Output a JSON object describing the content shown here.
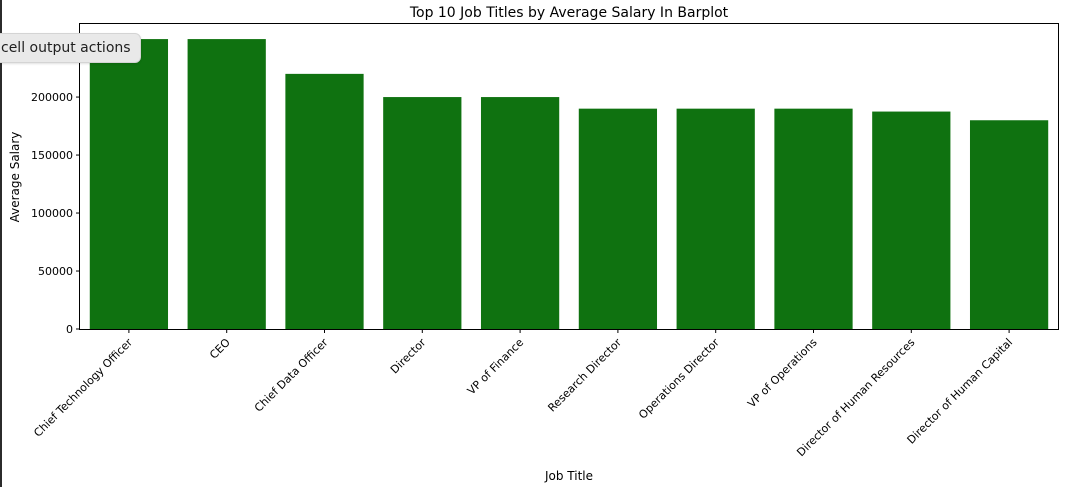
{
  "output_actions": {
    "label": "cell output actions"
  },
  "colors": {
    "bar": "#0f7210",
    "axis": "#000000",
    "text": "#000000"
  },
  "chart_data": {
    "type": "bar",
    "title": "Top 10 Job Titles by Average Salary In Barplot",
    "xlabel": "Job Title",
    "ylabel": "Average Salary",
    "categories": [
      "Chief Technology Officer",
      "CEO",
      "Chief Data Officer",
      "Director",
      "VP of Finance",
      "Research Director",
      "Operations Director",
      "VP of Operations",
      "Director of Human Resources",
      "Director of Human Capital"
    ],
    "values": [
      250000,
      250000,
      220000,
      200000,
      200000,
      190000,
      190000,
      190000,
      187500,
      180000
    ],
    "ylim": [
      0,
      263000
    ],
    "yticks": [
      0,
      50000,
      100000,
      150000,
      200000
    ],
    "ytick_labels": [
      "0",
      "50000",
      "100000",
      "150000",
      "200000"
    ],
    "grid": false
  }
}
